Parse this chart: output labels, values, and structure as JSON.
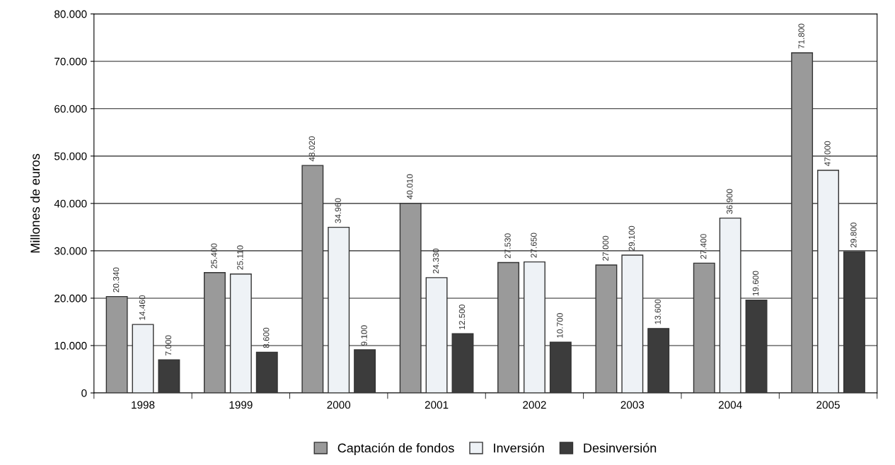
{
  "chart_data": {
    "type": "bar",
    "ylabel": "Millones de euros",
    "categories": [
      "1998",
      "1999",
      "2000",
      "2001",
      "2002",
      "2003",
      "2004",
      "2005"
    ],
    "series": [
      {
        "name": "Captación de fondos",
        "color": "#9a9a9a",
        "values": [
          20340,
          25400,
          48020,
          40010,
          27530,
          27000,
          27400,
          71800
        ],
        "value_labels": [
          "20.340",
          "25.400",
          "48.020",
          "40.010",
          "27.530",
          "27.000",
          "27.400",
          "71.800"
        ]
      },
      {
        "name": "Inversión",
        "color": "#eef2f6",
        "values": [
          14460,
          25110,
          34960,
          24330,
          27650,
          29100,
          36900,
          47000
        ],
        "value_labels": [
          "14.460",
          "25.110",
          "34.960",
          "24.330",
          "27.650",
          "29.100",
          "36.900",
          "47.000"
        ]
      },
      {
        "name": "Desinversión",
        "color": "#3c3c3c",
        "values": [
          7000,
          8600,
          9100,
          12500,
          10700,
          13600,
          19600,
          29800
        ],
        "value_labels": [
          "7.000",
          "8.600",
          "9.100",
          "12.500",
          "10.700",
          "13.600",
          "19.600",
          "29.800"
        ]
      }
    ],
    "ylim": [
      0,
      80000
    ],
    "yticks": [
      {
        "value": 0,
        "label": "0"
      },
      {
        "value": 10000,
        "label": "10.000"
      },
      {
        "value": 20000,
        "label": "20.000"
      },
      {
        "value": 30000,
        "label": "30.000"
      },
      {
        "value": 40000,
        "label": "40.000"
      },
      {
        "value": 50000,
        "label": "50.000"
      },
      {
        "value": 60000,
        "label": "60.000"
      },
      {
        "value": 70000,
        "label": "70.000"
      },
      {
        "value": 80000,
        "label": "80.000"
      }
    ],
    "grid": "y",
    "legend": "bottom"
  }
}
